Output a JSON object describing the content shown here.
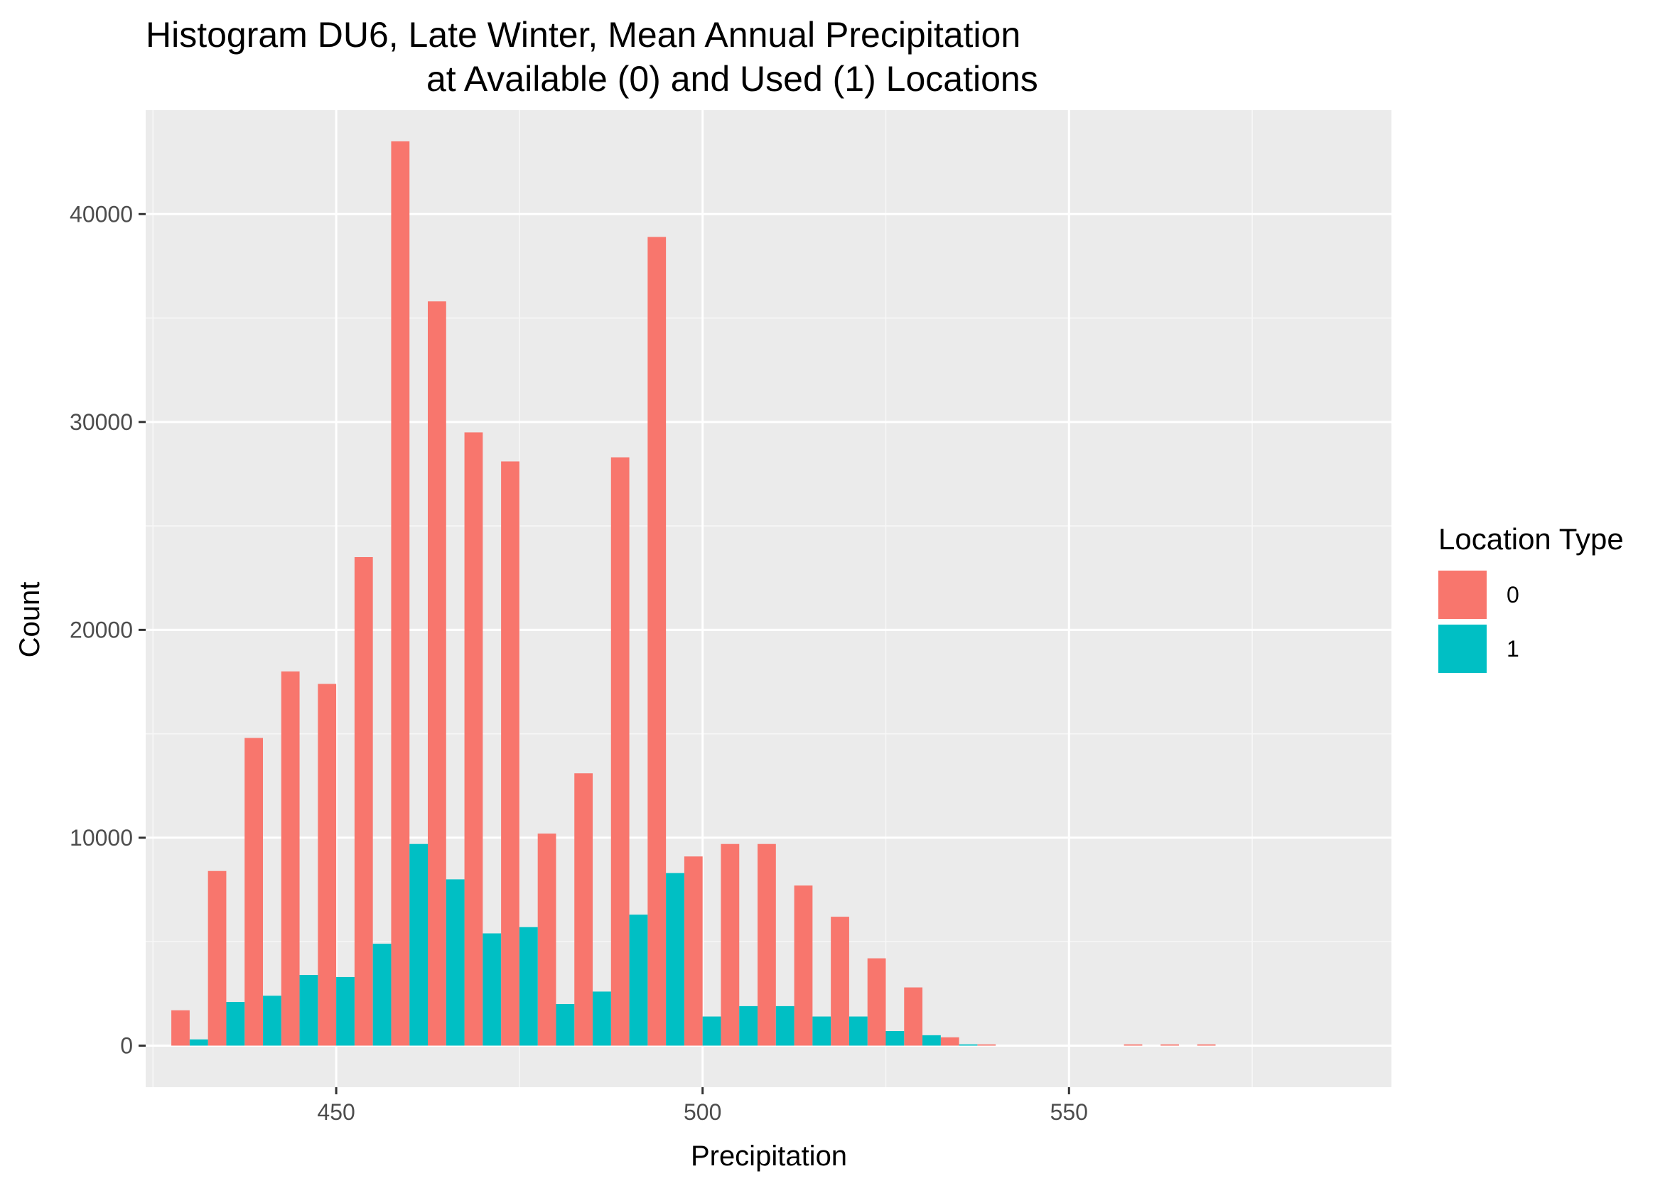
{
  "chart_data": {
    "type": "bar",
    "title_line1": "Histogram DU6, Late Winter, Mean Annual Precipitation",
    "title_line2": "at Available (0) and Used (1) Locations",
    "xlabel": "Precipitation",
    "ylabel": "Count",
    "xlim": [
      424,
      594
    ],
    "ylim": [
      -2000,
      45000
    ],
    "x_ticks": [
      450,
      500,
      550
    ],
    "y_ticks": [
      0,
      10000,
      20000,
      30000,
      40000
    ],
    "grid": true,
    "legend": {
      "title": "Location Type",
      "position": "right"
    },
    "bin_centers": [
      430,
      435,
      440,
      445,
      450,
      455,
      460,
      465,
      470,
      475,
      480,
      485,
      490,
      495,
      500,
      505,
      510,
      515,
      520,
      525,
      530,
      535,
      540,
      545,
      550,
      555,
      560,
      565,
      570
    ],
    "series": [
      {
        "name": "0",
        "color": "#F8766D",
        "values": [
          1700,
          8400,
          14800,
          18000,
          17400,
          23500,
          43500,
          35800,
          29500,
          28100,
          10200,
          13100,
          28300,
          38900,
          9100,
          9700,
          9700,
          7700,
          6200,
          4200,
          2800,
          400,
          60,
          0,
          0,
          0,
          60,
          60,
          60
        ]
      },
      {
        "name": "1",
        "color": "#00BFC4",
        "values": [
          300,
          2100,
          2400,
          3400,
          3300,
          4900,
          9700,
          8000,
          5400,
          5700,
          2000,
          2600,
          6300,
          8300,
          1400,
          1900,
          1900,
          1400,
          1400,
          700,
          500,
          60,
          0,
          0,
          0,
          0,
          0,
          0,
          0
        ]
      }
    ]
  }
}
